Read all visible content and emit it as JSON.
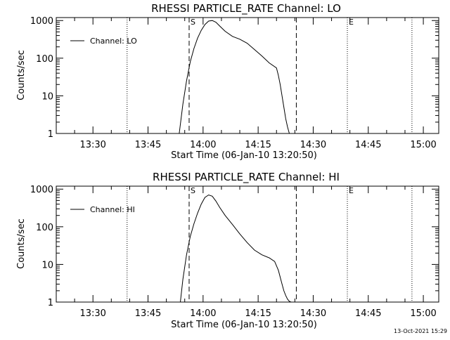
{
  "footer_timestamp": "13-Oct-2021 15:29",
  "chart_data": [
    {
      "type": "line",
      "title": "RHESSI PARTICLE_RATE Channel: LO",
      "xlabel": "Start Time (06-Jan-10 13:20:50)",
      "ylabel": "Counts/sec",
      "yscale": "log",
      "ylim": [
        1,
        1200
      ],
      "xlim_minutes_after_1320": [
        0,
        104.2
      ],
      "y_ticks": [
        {
          "value": 1,
          "label": "1"
        },
        {
          "value": 10,
          "label": "10"
        },
        {
          "value": 100,
          "label": "100"
        },
        {
          "value": 1000,
          "label": "1000"
        }
      ],
      "x_ticks": [
        {
          "minute": 10,
          "label": "13:30"
        },
        {
          "minute": 25,
          "label": "13:45"
        },
        {
          "minute": 40,
          "label": "14:00"
        },
        {
          "minute": 55,
          "label": "14:15"
        },
        {
          "minute": 70,
          "label": "14:30"
        },
        {
          "minute": 85,
          "label": "14:45"
        },
        {
          "minute": 100,
          "label": "15:00"
        }
      ],
      "legend": {
        "label": "Channel: LO",
        "position": "top-left"
      },
      "vlines": [
        {
          "minute": 19.3,
          "style": "dotted"
        },
        {
          "minute": 36.2,
          "style": "dashed",
          "label": "S"
        },
        {
          "minute": 65.4,
          "style": "dashed"
        },
        {
          "minute": 79.3,
          "style": "dotted",
          "label": "E"
        },
        {
          "minute": 96.9,
          "style": "dotted"
        }
      ],
      "series": [
        {
          "name": "Channel: LO",
          "x": [
            33.5,
            34.5,
            35.5,
            36.5,
            37.5,
            38.5,
            39.5,
            40.5,
            41.5,
            42.5,
            43.5,
            44.5,
            46,
            48,
            50,
            52,
            54,
            56,
            58,
            60,
            60.5,
            61,
            61.5,
            62,
            62.5,
            63,
            63.5
          ],
          "y": [
            1,
            6,
            25,
            80,
            180,
            340,
            550,
            780,
            970,
            1000,
            900,
            720,
            520,
            380,
            320,
            250,
            170,
            115,
            75,
            55,
            35,
            20,
            10,
            5,
            2.5,
            1.5,
            1
          ]
        }
      ]
    },
    {
      "type": "line",
      "title": "RHESSI PARTICLE_RATE Channel: HI",
      "xlabel": "Start Time (06-Jan-10 13:20:50)",
      "ylabel": "Counts/sec",
      "yscale": "log",
      "ylim": [
        1,
        1200
      ],
      "xlim_minutes_after_1320": [
        0,
        104.2
      ],
      "y_ticks": [
        {
          "value": 1,
          "label": "1"
        },
        {
          "value": 10,
          "label": "10"
        },
        {
          "value": 100,
          "label": "100"
        },
        {
          "value": 1000,
          "label": "1000"
        }
      ],
      "x_ticks": [
        {
          "minute": 10,
          "label": "13:30"
        },
        {
          "minute": 25,
          "label": "13:45"
        },
        {
          "minute": 40,
          "label": "14:00"
        },
        {
          "minute": 55,
          "label": "14:15"
        },
        {
          "minute": 70,
          "label": "14:30"
        },
        {
          "minute": 85,
          "label": "14:45"
        },
        {
          "minute": 100,
          "label": "15:00"
        }
      ],
      "legend": {
        "label": "Channel: HI",
        "position": "top-left"
      },
      "vlines": [
        {
          "minute": 19.3,
          "style": "dotted"
        },
        {
          "minute": 36.2,
          "style": "dashed",
          "label": "S"
        },
        {
          "minute": 65.4,
          "style": "dashed"
        },
        {
          "minute": 79.3,
          "style": "dotted",
          "label": "E"
        },
        {
          "minute": 96.9,
          "style": "dotted"
        }
      ],
      "series": [
        {
          "name": "Channel: HI",
          "x": [
            33.8,
            34.5,
            35.5,
            36.5,
            37.5,
            38.5,
            39.5,
            40.5,
            41.5,
            42.5,
            43.5,
            44.5,
            46,
            48,
            50,
            52,
            54,
            56,
            58,
            59.5,
            60.5,
            61.5,
            62,
            62.5,
            63,
            63.5,
            64
          ],
          "y": [
            1,
            4,
            18,
            55,
            120,
            230,
            400,
            600,
            700,
            650,
            480,
            330,
            200,
            115,
            65,
            38,
            24,
            18,
            15,
            12,
            7,
            3,
            2,
            1.5,
            1.2,
            1.05,
            1
          ]
        }
      ]
    }
  ]
}
